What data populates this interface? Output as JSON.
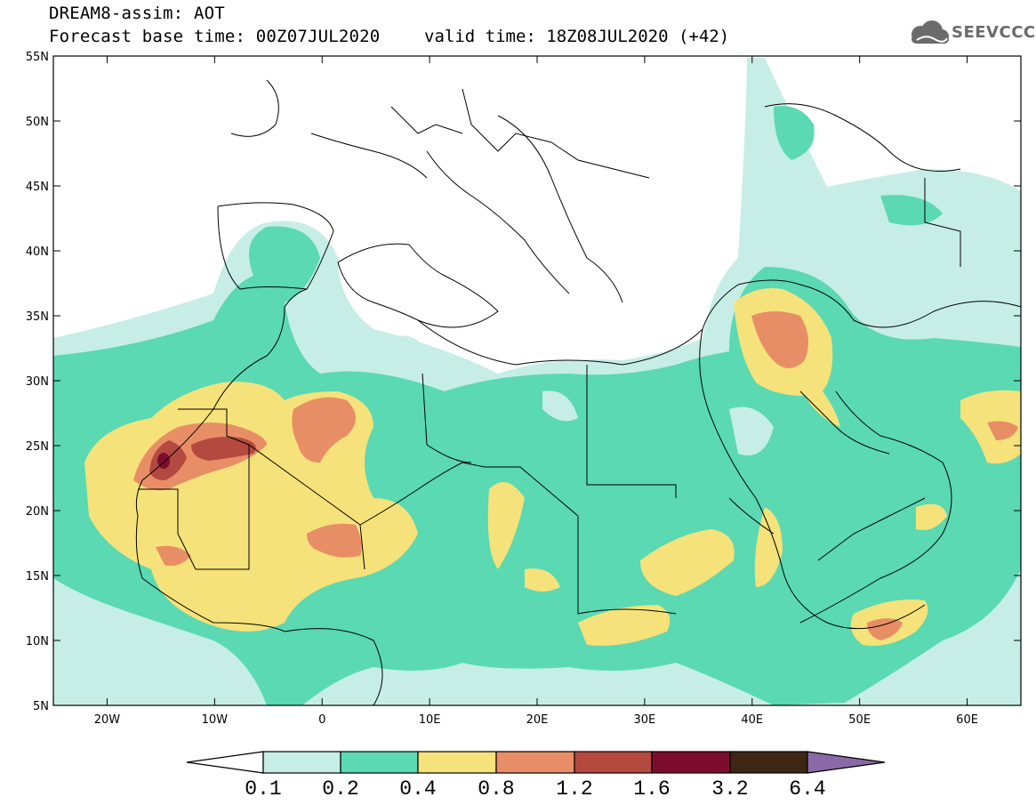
{
  "title": {
    "line1": "DREAM8-assim: AOT",
    "base": "Forecast base time: 00Z07JUL2020",
    "valid": "valid time: 18Z08JUL2020 (+42)"
  },
  "logo": {
    "text": "SEEVCCC",
    "icon": "cloud-icon"
  },
  "map": {
    "lat_range": [
      5,
      55
    ],
    "lon_range": [
      -25,
      65
    ],
    "lat_ticks": [
      "55N",
      "50N",
      "45N",
      "40N",
      "35N",
      "30N",
      "25N",
      "20N",
      "15N",
      "10N",
      "5N"
    ],
    "lon_ticks": [
      "20W",
      "10W",
      "0",
      "10E",
      "20E",
      "30E",
      "40E",
      "50E",
      "60E"
    ]
  },
  "colorbar": {
    "labels": [
      "0.1",
      "0.2",
      "0.4",
      "0.8",
      "1.2",
      "1.6",
      "3.2",
      "6.4"
    ],
    "colors": [
      "#c6eee6",
      "#5ad9b2",
      "#f6e27a",
      "#e88e66",
      "#b3493f",
      "#7d0d2e",
      "#3e2614",
      "#8a6aa6"
    ],
    "under_color": "#ffffff"
  }
}
